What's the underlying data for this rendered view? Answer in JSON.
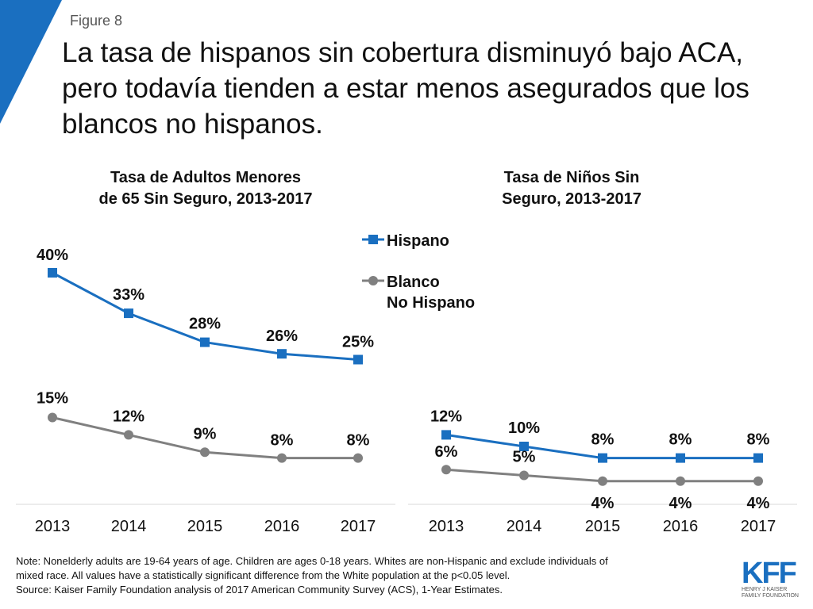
{
  "figure_label": "Figure 8",
  "headline": "La tasa de hispanos sin cobertura disminuyó bajo ACA, pero todavía tienden a estar menos asegurados que los blancos no hispanos.",
  "colors": {
    "hispanic": "#1a6fc0",
    "white": "#808080",
    "accent": "#1a6fc0"
  },
  "chart_data": [
    {
      "type": "line",
      "title_line1": "Tasa de Adultos Menores",
      "title_line2": "de 65 Sin Seguro, 2013-2017",
      "categories": [
        "2013",
        "2014",
        "2015",
        "2016",
        "2017"
      ],
      "ylim": [
        0,
        45
      ],
      "series": [
        {
          "name": "Hispano",
          "values": [
            40,
            33,
            28,
            26,
            25
          ],
          "labels": [
            "40%",
            "33%",
            "28%",
            "26%",
            "25%"
          ]
        },
        {
          "name": "Blanco No Hispano",
          "values": [
            15,
            12,
            9,
            8,
            8
          ],
          "labels": [
            "15%",
            "12%",
            "9%",
            "8%",
            "8%"
          ]
        }
      ]
    },
    {
      "type": "line",
      "title_line1": "Tasa de Niños Sin",
      "title_line2": "Seguro, 2013-2017",
      "categories": [
        "2013",
        "2014",
        "2015",
        "2016",
        "2017"
      ],
      "ylim": [
        0,
        45
      ],
      "series": [
        {
          "name": "Hispano",
          "values": [
            12,
            10,
            8,
            8,
            8
          ],
          "labels": [
            "12%",
            "10%",
            "8%",
            "8%",
            "8%"
          ]
        },
        {
          "name": "Blanco No Hispano",
          "values": [
            6,
            5,
            4,
            4,
            4
          ],
          "labels": [
            "6%",
            "5%",
            "4%",
            "4%",
            "4%"
          ]
        }
      ]
    }
  ],
  "legend": {
    "hispanic": "Hispano",
    "white_line1": "Blanco",
    "white_line2": "No Hispano"
  },
  "notes": {
    "line1": "Note: Nonelderly adults are 19-64 years of age. Children are ages 0-18 years. Whites are non-Hispanic and exclude individuals of",
    "line2": "mixed race. All values have a statistically significant difference from the White population at the p<0.05 level.",
    "line3": "Source: Kaiser Family Foundation analysis of 2017 American Community Survey (ACS), 1-Year Estimates."
  },
  "logo": {
    "mark": "KFF",
    "line1": "Henry J Kaiser",
    "line2": "Family Foundation"
  }
}
